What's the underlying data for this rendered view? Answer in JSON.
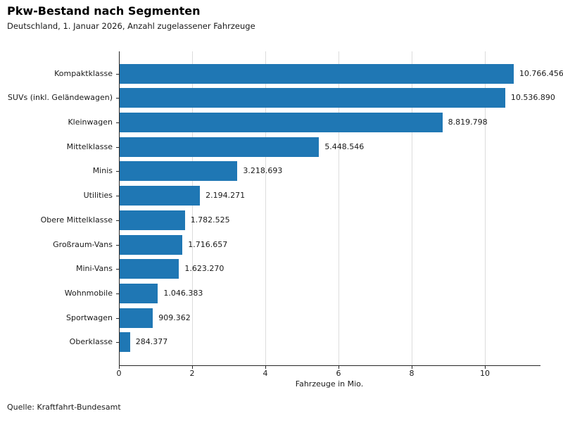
{
  "header": {
    "title": "Pkw-Bestand nach Segmenten",
    "subtitle": "Deutschland, 1. Januar 2026, Anzahl zugelassener Fahrzeuge"
  },
  "footer": {
    "source": "Quelle: Kraftfahrt-Bundesamt"
  },
  "chart_data": {
    "type": "bar",
    "orientation": "horizontal",
    "title": "Pkw-Bestand nach Segmenten",
    "subtitle": "Deutschland, 1. Januar 2026, Anzahl zugelassener Fahrzeuge",
    "categories": [
      "Kompaktklasse",
      "SUVs (inkl. Geländewagen)",
      "Kleinwagen",
      "Mittelklasse",
      "Minis",
      "Utilities",
      "Obere Mittelklasse",
      "Großraum-Vans",
      "Mini-Vans",
      "Wohnmobile",
      "Sportwagen",
      "Oberklasse"
    ],
    "values": [
      10766456,
      10536890,
      8819798,
      5448546,
      3218693,
      2194271,
      1782525,
      1716657,
      1623270,
      1046383,
      909362,
      284377
    ],
    "value_labels": [
      "10.766.456",
      "10.536.890",
      "8.819.798",
      "5.448.546",
      "3.218.693",
      "2.194.271",
      "1.782.525",
      "1.716.657",
      "1.623.270",
      "1.046.383",
      "909.362",
      "284.377"
    ],
    "xlabel": "Fahrzeuge in Mio.",
    "xticks": [
      0,
      2,
      4,
      6,
      8,
      10
    ],
    "xlim": [
      0,
      11.5
    ],
    "grid": "vertical",
    "legend": "none",
    "bar_color": "#1f77b4",
    "source": "Quelle: Kraftfahrt-Bundesamt"
  }
}
